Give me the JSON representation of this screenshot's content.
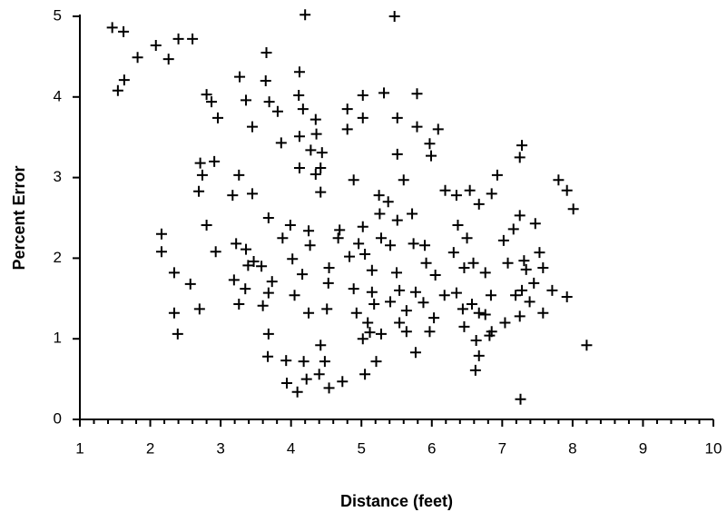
{
  "chart_data": {
    "type": "scatter",
    "xlabel": "Distance (feet)",
    "ylabel": "Percent Error",
    "xlim": [
      1,
      10
    ],
    "xticks": [
      1,
      2,
      3,
      4,
      5,
      6,
      7,
      8,
      9,
      10
    ],
    "ylim": [
      0,
      5
    ],
    "yticks": [
      0,
      1,
      2,
      3,
      4,
      5
    ],
    "color": "#000000",
    "x": [
      1.46,
      1.62,
      1.54,
      1.63,
      1.82,
      2.08,
      2.26,
      2.4,
      2.6,
      4.2,
      5.47,
      2.8,
      2.96,
      2.87,
      3.27,
      3.36,
      3.65,
      3.64,
      3.69,
      4.12,
      4.11,
      3.45,
      3.81,
      3.86,
      4.17,
      4.12,
      4.35,
      4.36,
      4.28,
      4.44,
      4.42,
      4.35,
      4.12,
      4.42,
      4.8,
      4.8,
      5.02,
      5.32,
      5.02,
      5.51,
      5.79,
      5.79,
      5.97,
      6.09,
      5.99,
      5.51,
      5.6,
      4.89,
      2.71,
      2.74,
      2.91,
      2.69,
      3.26,
      3.17,
      3.45,
      7.28,
      7.25,
      7.8,
      7.92,
      8.01,
      6.54,
      6.93,
      6.67,
      6.85,
      6.19,
      6.35,
      5.25,
      5.38,
      5.26,
      5.72,
      5.51,
      7.25,
      7.47,
      2.16,
      2.16,
      2.93,
      2.8,
      3.68,
      3.99,
      3.88,
      4.25,
      4.27,
      4.69,
      4.67,
      5.02,
      4.96,
      5.05,
      5.28,
      5.41,
      5.74,
      5.9,
      6.37,
      6.5,
      7.02,
      7.16,
      7.53,
      3.22,
      3.36,
      3.47,
      3.39,
      3.58,
      3.19,
      3.73,
      4.02,
      4.16,
      4.54,
      4.83,
      5.15,
      5.5,
      5.92,
      6.05,
      6.31,
      6.46,
      6.59,
      6.76,
      7.08,
      7.31,
      7.34,
      7.58,
      7.45,
      7.71,
      7.92,
      7.28,
      7.19,
      7.39,
      7.58,
      7.25,
      2.34,
      2.57,
      2.7,
      2.34,
      2.39,
      3.26,
      3.35,
      3.68,
      3.6,
      4.05,
      4.25,
      4.53,
      4.51,
      4.89,
      4.93,
      5.15,
      5.18,
      5.09,
      5.41,
      5.54,
      5.54,
      5.64,
      5.77,
      5.88,
      6.03,
      6.18,
      6.35,
      6.44,
      6.57,
      6.67,
      6.76,
      6.84,
      7.04,
      6.46,
      5.97,
      5.64,
      5.28,
      5.77,
      6.63,
      6.67,
      6.62,
      6.82,
      6.85,
      8.2,
      7.26,
      3.68,
      3.67,
      3.93,
      4.18,
      4.42,
      4.48,
      4.4,
      4.54,
      4.73,
      3.94,
      4.09,
      4.22,
      5.05,
      5.21,
      5.02,
      5.12
    ],
    "y": [
      4.86,
      4.81,
      4.08,
      4.21,
      4.49,
      4.64,
      4.47,
      4.72,
      4.72,
      5.02,
      5.0,
      4.03,
      3.74,
      3.94,
      4.25,
      3.96,
      4.55,
      4.2,
      3.94,
      4.31,
      4.02,
      3.63,
      3.82,
      3.43,
      3.85,
      3.51,
      3.72,
      3.54,
      3.34,
      3.31,
      3.12,
      3.04,
      3.12,
      2.82,
      3.85,
      3.6,
      3.74,
      4.05,
      4.02,
      3.74,
      4.04,
      3.63,
      3.42,
      3.6,
      3.27,
      3.29,
      2.97,
      2.97,
      3.18,
      3.03,
      3.2,
      2.83,
      3.03,
      2.78,
      2.8,
      3.4,
      3.25,
      2.97,
      2.84,
      2.61,
      2.84,
      3.03,
      2.67,
      2.8,
      2.84,
      2.78,
      2.78,
      2.7,
      2.55,
      2.55,
      2.47,
      2.53,
      2.43,
      2.3,
      2.08,
      2.08,
      2.41,
      2.5,
      2.41,
      2.25,
      2.34,
      2.16,
      2.35,
      2.25,
      2.39,
      2.18,
      2.05,
      2.25,
      2.16,
      2.18,
      2.16,
      2.41,
      2.25,
      2.22,
      2.36,
      2.07,
      2.18,
      2.11,
      1.96,
      1.91,
      1.9,
      1.73,
      1.71,
      1.99,
      1.8,
      1.88,
      2.02,
      1.85,
      1.82,
      1.94,
      1.79,
      2.07,
      1.88,
      1.94,
      1.82,
      1.94,
      1.97,
      1.86,
      1.88,
      1.69,
      1.6,
      1.52,
      1.6,
      1.54,
      1.46,
      1.32,
      1.28,
      1.82,
      1.68,
      1.37,
      1.32,
      1.06,
      1.43,
      1.62,
      1.57,
      1.41,
      1.54,
      1.32,
      1.69,
      1.37,
      1.62,
      1.32,
      1.58,
      1.43,
      1.2,
      1.46,
      1.2,
      1.6,
      1.35,
      1.58,
      1.45,
      1.26,
      1.54,
      1.57,
      1.37,
      1.43,
      1.32,
      1.3,
      1.54,
      1.2,
      1.15,
      1.09,
      1.09,
      1.06,
      0.83,
      0.98,
      0.79,
      0.61,
      1.04,
      1.09,
      0.92,
      0.25,
      1.06,
      0.78,
      0.73,
      0.72,
      0.92,
      0.72,
      0.56,
      0.39,
      0.47,
      0.45,
      0.34,
      0.5,
      0.56,
      0.72,
      1.0,
      1.08
    ]
  }
}
